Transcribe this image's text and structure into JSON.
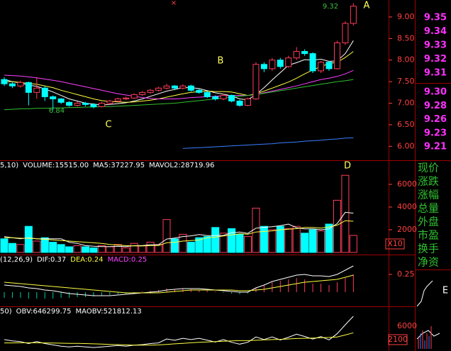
{
  "chart_data": [
    {
      "type": "candlestick",
      "up_color": "#ff3c5a",
      "down_color": "#00ffff",
      "open": [
        7.55,
        7.45,
        7.4,
        7.48,
        7.25,
        7.35,
        7.15,
        7.1,
        7.02,
        6.95,
        7.0,
        6.97,
        6.92,
        7.0,
        7.05,
        7.1,
        7.12,
        7.2,
        7.25,
        7.3,
        7.35,
        7.4,
        7.35,
        7.4,
        7.3,
        7.25,
        7.15,
        7.1,
        7.18,
        7.05,
        6.95,
        7.1,
        7.9,
        7.8,
        8.0,
        7.85,
        8.05,
        8.2,
        8.15,
        7.75,
        7.95,
        7.8,
        8.4,
        8.85
      ],
      "high": [
        7.6,
        7.5,
        7.52,
        7.5,
        7.6,
        7.4,
        7.18,
        7.12,
        7.05,
        7.04,
        7.03,
        7.0,
        7.03,
        7.08,
        7.13,
        7.15,
        7.23,
        7.28,
        7.33,
        7.38,
        7.45,
        7.42,
        7.44,
        7.43,
        7.33,
        7.28,
        7.18,
        7.22,
        7.2,
        7.08,
        7.13,
        7.95,
        7.95,
        8.05,
        8.05,
        8.1,
        8.3,
        8.25,
        8.18,
        7.98,
        7.98,
        8.45,
        8.9,
        9.32
      ],
      "low": [
        7.4,
        7.35,
        7.36,
        6.95,
        7.1,
        7.05,
        6.84,
        6.98,
        6.92,
        6.92,
        6.93,
        6.88,
        6.9,
        6.97,
        7.02,
        7.07,
        7.1,
        7.17,
        7.22,
        7.27,
        7.32,
        7.3,
        7.32,
        7.27,
        7.22,
        7.12,
        7.06,
        7.07,
        7.02,
        6.92,
        6.93,
        7.08,
        7.72,
        7.75,
        7.8,
        7.82,
        8.0,
        8.1,
        7.7,
        7.7,
        7.75,
        7.78,
        8.35,
        8.8
      ],
      "close": [
        7.45,
        7.4,
        7.48,
        7.25,
        7.35,
        7.15,
        7.1,
        7.02,
        6.95,
        7.0,
        6.97,
        6.92,
        7.0,
        7.05,
        7.1,
        7.12,
        7.2,
        7.25,
        7.3,
        7.35,
        7.4,
        7.35,
        7.4,
        7.3,
        7.25,
        7.15,
        7.1,
        7.18,
        7.05,
        6.95,
        7.1,
        7.9,
        7.8,
        8.0,
        7.85,
        8.05,
        8.2,
        8.15,
        7.75,
        7.95,
        7.8,
        8.4,
        8.85,
        9.25
      ],
      "series": [
        {
          "color": "#ffffff",
          "values": [
            7.55,
            7.5,
            7.47,
            7.42,
            7.39,
            7.33,
            7.26,
            7.18,
            7.1,
            7.05,
            7.0,
            6.98,
            6.96,
            6.97,
            6.99,
            7.01,
            7.05,
            7.1,
            7.16,
            7.22,
            7.28,
            7.32,
            7.36,
            7.36,
            7.34,
            7.29,
            7.24,
            7.21,
            7.17,
            7.1,
            7.08,
            7.2,
            7.36,
            7.54,
            7.71,
            7.88,
            7.94,
            8.01,
            8.0,
            8.02,
            7.97,
            7.98,
            8.15,
            8.45
          ]
        },
        {
          "color": "#ffff40",
          "values": [
            7.5,
            7.5,
            7.48,
            7.46,
            7.44,
            7.4,
            7.36,
            7.3,
            7.25,
            7.2,
            7.15,
            7.1,
            7.06,
            7.04,
            7.03,
            7.02,
            7.03,
            7.05,
            7.07,
            7.1,
            7.14,
            7.18,
            7.22,
            7.25,
            7.27,
            7.28,
            7.27,
            7.27,
            7.26,
            7.22,
            7.18,
            7.22,
            7.28,
            7.35,
            7.42,
            7.49,
            7.58,
            7.68,
            7.77,
            7.85,
            7.92,
            7.95,
            8.06,
            8.2
          ]
        },
        {
          "color": "#ff40ff",
          "values": [
            7.65,
            7.64,
            7.63,
            7.61,
            7.59,
            7.56,
            7.53,
            7.5,
            7.46,
            7.42,
            7.38,
            7.34,
            7.3,
            7.26,
            7.22,
            7.19,
            7.16,
            7.13,
            7.11,
            7.1,
            7.1,
            7.1,
            7.11,
            7.13,
            7.14,
            7.15,
            7.16,
            7.17,
            7.18,
            7.18,
            7.18,
            7.2,
            7.24,
            7.28,
            7.32,
            7.36,
            7.4,
            7.45,
            7.5,
            7.55,
            7.58,
            7.62,
            7.68,
            7.76
          ]
        },
        {
          "color": "#30c030",
          "values": [
            6.85,
            6.86,
            6.87,
            6.87,
            6.88,
            6.88,
            6.89,
            6.89,
            6.9,
            6.9,
            6.91,
            6.91,
            6.92,
            6.92,
            6.93,
            6.94,
            6.95,
            6.96,
            6.97,
            6.98,
            6.99,
            7.0,
            7.02,
            7.04,
            7.06,
            7.08,
            7.1,
            7.12,
            7.14,
            7.16,
            7.18,
            7.2,
            7.23,
            7.26,
            7.29,
            7.32,
            7.35,
            7.38,
            7.41,
            7.44,
            7.47,
            7.5,
            7.52,
            7.55
          ]
        },
        {
          "color": "#3a7fff",
          "values": [
            null,
            null,
            null,
            null,
            null,
            null,
            null,
            null,
            null,
            null,
            null,
            null,
            null,
            null,
            null,
            null,
            null,
            null,
            null,
            null,
            null,
            null,
            5.95,
            5.96,
            5.97,
            5.98,
            5.99,
            6.0,
            6.01,
            6.02,
            6.03,
            6.04,
            6.05,
            6.06,
            6.08,
            6.09,
            6.1,
            6.12,
            6.13,
            6.14,
            6.16,
            6.17,
            6.19,
            6.2
          ]
        }
      ],
      "ylim": [
        5.71,
        9.36
      ],
      "yticks": [
        {
          "value": 9,
          "label": "9.00"
        },
        {
          "value": 8.5,
          "label": "8.50"
        },
        {
          "value": 8,
          "label": "8.00"
        },
        {
          "value": 7.5,
          "label": "7.50"
        },
        {
          "value": 7,
          "label": "7.00"
        },
        {
          "value": 6.5,
          "label": "6.50"
        },
        {
          "value": 6,
          "label": "6.00"
        }
      ],
      "annotations": [
        "A",
        "B",
        "C",
        "9.32",
        "6.84",
        "×"
      ]
    },
    {
      "type": "volume",
      "header": [
        {
          "text": "5,10)",
          "color": "#ffffff"
        },
        {
          "text": "VOLUME:15515.00",
          "color": "#ffffff"
        },
        {
          "text": "MA5:37227.95",
          "color": "#ffffff"
        },
        {
          "text": "MAVOL2:28719.96",
          "color": "#ffffff"
        }
      ],
      "values": [
        1200,
        800,
        700,
        2300,
        1000,
        1300,
        900,
        700,
        500,
        600,
        500,
        400,
        600,
        500,
        700,
        400,
        800,
        600,
        900,
        700,
        2900,
        1200,
        1600,
        900,
        1300,
        1400,
        2200,
        1700,
        2100,
        1600,
        1400,
        3900,
        2300,
        2000,
        2300,
        2100,
        2300,
        1700,
        2000,
        1900,
        2500,
        4600,
        6800,
        1500
      ],
      "series": [
        {
          "color": "#ffffff",
          "values": [
            1400,
            1300,
            1200,
            1300,
            1200,
            1200,
            1200,
            1200,
            900,
            800,
            600,
            550,
            520,
            520,
            540,
            520,
            600,
            600,
            680,
            680,
            1180,
            1260,
            1400,
            1460,
            1580,
            1480,
            1480,
            1500,
            1740,
            1800,
            1680,
            2140,
            2220,
            2260,
            2360,
            2500,
            2180,
            2080,
            2080,
            2000,
            2080,
            2540,
            3540,
            3460
          ]
        },
        {
          "color": "#ffff40",
          "values": [
            1300,
            1300,
            1250,
            1250,
            1200,
            1150,
            1100,
            1050,
            1000,
            950,
            900,
            850,
            800,
            700,
            650,
            600,
            580,
            570,
            600,
            610,
            850,
            900,
            1000,
            1050,
            1100,
            1300,
            1350,
            1450,
            1550,
            1650,
            1600,
            1800,
            1850,
            1900,
            2000,
            2050,
            2100,
            2200,
            2200,
            2150,
            2250,
            2400,
            2800,
            2750
          ]
        }
      ],
      "ylim": [
        0,
        8000
      ],
      "yticks": [
        2000,
        4000,
        6000
      ],
      "unit_label": "X10",
      "annotations": [
        "D"
      ]
    },
    {
      "type": "macd",
      "up_color": "#ff3c5a",
      "down_color": "#00c8a0",
      "header": [
        {
          "text": "(12,26,9)",
          "color": "#ffffff"
        },
        {
          "text": "DIF:0.37",
          "color": "#ffffff"
        },
        {
          "text": "DEA:0.24",
          "color": "#ffff40"
        },
        {
          "text": "MACD:0.25",
          "color": "#ff40ff"
        }
      ],
      "values": [
        -0.08,
        -0.08,
        -0.08,
        -0.09,
        -0.09,
        -0.09,
        -0.09,
        -0.08,
        -0.08,
        -0.07,
        -0.07,
        -0.06,
        -0.05,
        -0.04,
        -0.03,
        -0.02,
        -0.01,
        0.01,
        0.02,
        0.03,
        0.05,
        0.04,
        0.05,
        0.04,
        0.03,
        0.02,
        0.01,
        -0.01,
        -0.02,
        -0.03,
        -0.02,
        0.06,
        0.1,
        0.14,
        0.16,
        0.18,
        0.2,
        0.18,
        0.12,
        0.12,
        0.1,
        0.14,
        0.2,
        0.25
      ],
      "series": [
        {
          "color": "#ffffff",
          "values": [
            0.1,
            0.09,
            0.08,
            0.06,
            0.05,
            0.03,
            0.02,
            0.0,
            -0.02,
            -0.03,
            -0.04,
            -0.05,
            -0.05,
            -0.05,
            -0.04,
            -0.03,
            -0.02,
            -0.01,
            0.0,
            0.01,
            0.03,
            0.04,
            0.05,
            0.05,
            0.05,
            0.04,
            0.03,
            0.02,
            0.01,
            0.0,
            0.0,
            0.06,
            0.1,
            0.15,
            0.18,
            0.21,
            0.24,
            0.25,
            0.23,
            0.23,
            0.22,
            0.25,
            0.31,
            0.37
          ]
        },
        {
          "color": "#ffff40",
          "values": [
            0.14,
            0.13,
            0.12,
            0.11,
            0.1,
            0.09,
            0.08,
            0.07,
            0.06,
            0.05,
            0.04,
            0.03,
            0.02,
            0.01,
            0.0,
            -0.01,
            -0.01,
            -0.01,
            -0.01,
            -0.01,
            0.0,
            0.01,
            0.02,
            0.03,
            0.03,
            0.03,
            0.03,
            0.03,
            0.03,
            0.02,
            0.02,
            0.03,
            0.04,
            0.06,
            0.08,
            0.1,
            0.12,
            0.14,
            0.15,
            0.16,
            0.17,
            0.18,
            0.21,
            0.24
          ]
        }
      ],
      "ylim": [
        -0.18,
        0.5
      ],
      "yticks": [
        0.25
      ]
    },
    {
      "type": "obv",
      "header": [
        {
          "text": "50)",
          "color": "#ffffff"
        },
        {
          "text": "OBV:646299.75",
          "color": "#ffffff"
        },
        {
          "text": "MAOBV:521812.13",
          "color": "#ffffff"
        }
      ],
      "series": [
        {
          "color": "#ffffff",
          "values": [
            470000,
            460000,
            455000,
            440000,
            455000,
            440000,
            430000,
            420000,
            415000,
            420000,
            415000,
            410000,
            415000,
            420000,
            425000,
            420000,
            428000,
            432000,
            440000,
            445000,
            475000,
            465000,
            480000,
            470000,
            480000,
            466000,
            452000,
            470000,
            450000,
            436000,
            450000,
            490000,
            470000,
            490000,
            467000,
            488000,
            511000,
            494000,
            474000,
            493000,
            468000,
            514000,
            582000,
            646299.75
          ]
        },
        {
          "color": "#ffff40",
          "values": [
            445000,
            445000,
            446000,
            446000,
            446000,
            445000,
            444000,
            443000,
            442000,
            441000,
            440000,
            438000,
            436000,
            434000,
            432000,
            430000,
            428000,
            428000,
            428000,
            430000,
            434000,
            438000,
            442000,
            446000,
            450000,
            452000,
            455000,
            458000,
            460000,
            462000,
            462000,
            465000,
            468000,
            470000,
            472000,
            475000,
            478000,
            480000,
            482000,
            484000,
            486000,
            490000,
            505000,
            521812.13
          ]
        }
      ],
      "ylim": [
        400000,
        700000
      ]
    }
  ],
  "sidebar": {
    "sell_prices": [
      "9.35",
      "9.34",
      "9.33",
      "9.32",
      "9.31"
    ],
    "buy_prices": [
      "9.30",
      "9.28",
      "9.26",
      "9.23",
      "9.21"
    ],
    "labels": [
      "现价",
      "涨跌",
      "涨幅",
      "总量",
      "外盘",
      "市盈",
      "换手",
      "净资"
    ],
    "mini_chart": {
      "label": "E",
      "ticks": [
        "6000",
        "2100"
      ]
    }
  }
}
